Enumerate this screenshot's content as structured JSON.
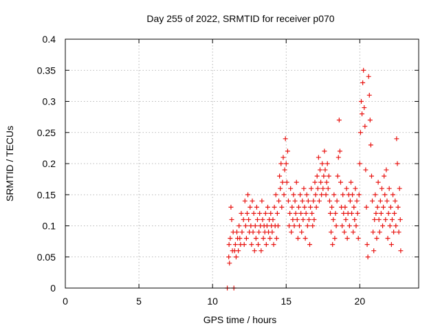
{
  "chart_data": {
    "type": "scatter",
    "title": "Day 255 of 2022, SRMTID for receiver p070",
    "xlabel": "GPS time / hours",
    "ylabel": "SRMTID / TECUs",
    "xlim": [
      0,
      24
    ],
    "ylim": [
      0,
      0.4
    ],
    "x_ticks": [
      0,
      5,
      10,
      15,
      20
    ],
    "x_tick_labels": [
      "0",
      "5",
      "10",
      "15",
      "20"
    ],
    "y_ticks": [
      0,
      0.05,
      0.1,
      0.15,
      0.2,
      0.25,
      0.3,
      0.35,
      0.4
    ],
    "y_tick_labels": [
      "0",
      "0.05",
      "0.1",
      "0.15",
      "0.2",
      "0.25",
      "0.3",
      "0.35",
      "0.4"
    ],
    "grid": true,
    "marker": "+",
    "color": "#e8120f",
    "series": [
      {
        "name": "SRMTID",
        "points": [
          [
            11.0,
            0.0
          ],
          [
            11.45,
            0.0
          ],
          [
            11.1,
            0.05
          ],
          [
            11.12,
            0.07
          ],
          [
            11.15,
            0.04
          ],
          [
            11.2,
            0.08
          ],
          [
            11.25,
            0.13
          ],
          [
            11.3,
            0.11
          ],
          [
            11.35,
            0.06
          ],
          [
            11.4,
            0.09
          ],
          [
            11.5,
            0.06
          ],
          [
            11.55,
            0.07
          ],
          [
            11.6,
            0.05
          ],
          [
            11.65,
            0.09
          ],
          [
            11.7,
            0.08
          ],
          [
            11.75,
            0.06
          ],
          [
            11.8,
            0.1
          ],
          [
            11.85,
            0.08
          ],
          [
            11.9,
            0.07
          ],
          [
            11.95,
            0.12
          ],
          [
            12.0,
            0.09
          ],
          [
            12.1,
            0.11
          ],
          [
            12.15,
            0.07
          ],
          [
            12.2,
            0.14
          ],
          [
            12.25,
            0.1
          ],
          [
            12.3,
            0.08
          ],
          [
            12.35,
            0.12
          ],
          [
            12.4,
            0.15
          ],
          [
            12.45,
            0.11
          ],
          [
            12.5,
            0.09
          ],
          [
            12.55,
            0.13
          ],
          [
            12.6,
            0.1
          ],
          [
            12.65,
            0.07
          ],
          [
            12.7,
            0.14
          ],
          [
            12.75,
            0.09
          ],
          [
            12.8,
            0.12
          ],
          [
            12.85,
            0.06
          ],
          [
            12.9,
            0.1
          ],
          [
            12.95,
            0.08
          ],
          [
            13.0,
            0.13
          ],
          [
            13.05,
            0.11
          ],
          [
            13.1,
            0.07
          ],
          [
            13.15,
            0.09
          ],
          [
            13.2,
            0.12
          ],
          [
            13.25,
            0.1
          ],
          [
            13.3,
            0.06
          ],
          [
            13.35,
            0.14
          ],
          [
            13.4,
            0.11
          ],
          [
            13.45,
            0.08
          ],
          [
            13.5,
            0.1
          ],
          [
            13.55,
            0.09
          ],
          [
            13.6,
            0.12
          ],
          [
            13.65,
            0.07
          ],
          [
            13.7,
            0.1
          ],
          [
            13.75,
            0.13
          ],
          [
            13.8,
            0.09
          ],
          [
            13.85,
            0.11
          ],
          [
            13.9,
            0.08
          ],
          [
            13.95,
            0.12
          ],
          [
            14.0,
            0.1
          ],
          [
            14.05,
            0.09
          ],
          [
            14.1,
            0.11
          ],
          [
            14.15,
            0.07
          ],
          [
            14.2,
            0.13
          ],
          [
            14.25,
            0.1
          ],
          [
            14.3,
            0.15
          ],
          [
            14.35,
            0.08
          ],
          [
            14.4,
            0.12
          ],
          [
            14.45,
            0.1
          ],
          [
            14.5,
            0.14
          ],
          [
            14.55,
            0.18
          ],
          [
            14.6,
            0.16
          ],
          [
            14.65,
            0.2
          ],
          [
            14.7,
            0.13
          ],
          [
            14.75,
            0.17
          ],
          [
            14.8,
            0.21
          ],
          [
            14.85,
            0.15
          ],
          [
            14.9,
            0.19
          ],
          [
            14.95,
            0.24
          ],
          [
            15.0,
            0.2
          ],
          [
            15.05,
            0.17
          ],
          [
            15.1,
            0.22
          ],
          [
            15.15,
            0.14
          ],
          [
            15.2,
            0.1
          ],
          [
            15.25,
            0.12
          ],
          [
            15.3,
            0.16
          ],
          [
            15.35,
            0.09
          ],
          [
            15.4,
            0.13
          ],
          [
            15.45,
            0.11
          ],
          [
            15.5,
            0.15
          ],
          [
            15.55,
            0.1
          ],
          [
            15.6,
            0.14
          ],
          [
            15.65,
            0.12
          ],
          [
            15.7,
            0.17
          ],
          [
            15.75,
            0.11
          ],
          [
            15.8,
            0.08
          ],
          [
            15.85,
            0.13
          ],
          [
            15.9,
            0.1
          ],
          [
            15.95,
            0.15
          ],
          [
            16.0,
            0.12
          ],
          [
            16.05,
            0.09
          ],
          [
            16.1,
            0.14
          ],
          [
            16.15,
            0.11
          ],
          [
            16.2,
            0.16
          ],
          [
            16.25,
            0.13
          ],
          [
            16.3,
            0.08
          ],
          [
            16.35,
            0.12
          ],
          [
            16.4,
            0.15
          ],
          [
            16.45,
            0.1
          ],
          [
            16.5,
            0.14
          ],
          [
            16.55,
            0.11
          ],
          [
            16.6,
            0.07
          ],
          [
            16.65,
            0.13
          ],
          [
            16.7,
            0.16
          ],
          [
            16.75,
            0.12
          ],
          [
            16.8,
            0.1
          ],
          [
            16.85,
            0.14
          ],
          [
            16.9,
            0.11
          ],
          [
            16.95,
            0.17
          ],
          [
            17.0,
            0.15
          ],
          [
            17.05,
            0.13
          ],
          [
            17.1,
            0.18
          ],
          [
            17.15,
            0.16
          ],
          [
            17.2,
            0.21
          ],
          [
            17.25,
            0.14
          ],
          [
            17.3,
            0.19
          ],
          [
            17.35,
            0.17
          ],
          [
            17.4,
            0.15
          ],
          [
            17.45,
            0.2
          ],
          [
            17.5,
            0.16
          ],
          [
            17.55,
            0.18
          ],
          [
            17.6,
            0.22
          ],
          [
            17.65,
            0.19
          ],
          [
            17.7,
            0.15
          ],
          [
            17.75,
            0.17
          ],
          [
            17.8,
            0.2
          ],
          [
            17.85,
            0.16
          ],
          [
            17.9,
            0.18
          ],
          [
            17.95,
            0.14
          ],
          [
            18.0,
            0.12
          ],
          [
            18.05,
            0.09
          ],
          [
            18.1,
            0.13
          ],
          [
            18.15,
            0.07
          ],
          [
            18.2,
            0.11
          ],
          [
            18.25,
            0.15
          ],
          [
            18.3,
            0.08
          ],
          [
            18.35,
            0.12
          ],
          [
            18.4,
            0.1
          ],
          [
            18.45,
            0.14
          ],
          [
            18.5,
            0.18
          ],
          [
            18.55,
            0.21
          ],
          [
            18.6,
            0.27
          ],
          [
            18.65,
            0.22
          ],
          [
            18.7,
            0.17
          ],
          [
            18.75,
            0.13
          ],
          [
            18.8,
            0.1
          ],
          [
            18.85,
            0.15
          ],
          [
            18.9,
            0.12
          ],
          [
            18.95,
            0.09
          ],
          [
            19.0,
            0.13
          ],
          [
            19.05,
            0.11
          ],
          [
            19.1,
            0.16
          ],
          [
            19.15,
            0.08
          ],
          [
            19.2,
            0.12
          ],
          [
            19.25,
            0.15
          ],
          [
            19.3,
            0.1
          ],
          [
            19.35,
            0.14
          ],
          [
            19.4,
            0.17
          ],
          [
            19.45,
            0.12
          ],
          [
            19.5,
            0.15
          ],
          [
            19.55,
            0.09
          ],
          [
            19.6,
            0.13
          ],
          [
            19.65,
            0.11
          ],
          [
            19.7,
            0.16
          ],
          [
            19.75,
            0.1
          ],
          [
            19.8,
            0.14
          ],
          [
            19.85,
            0.12
          ],
          [
            19.9,
            0.08
          ],
          [
            19.95,
            0.15
          ],
          [
            20.0,
            0.2
          ],
          [
            20.05,
            0.25
          ],
          [
            20.1,
            0.3
          ],
          [
            20.15,
            0.28
          ],
          [
            20.2,
            0.33
          ],
          [
            20.25,
            0.35
          ],
          [
            20.3,
            0.29
          ],
          [
            20.35,
            0.26
          ],
          [
            20.4,
            0.19
          ],
          [
            20.45,
            0.13
          ],
          [
            20.5,
            0.07
          ],
          [
            20.55,
            0.05
          ],
          [
            20.6,
            0.34
          ],
          [
            20.65,
            0.31
          ],
          [
            20.7,
            0.27
          ],
          [
            20.75,
            0.23
          ],
          [
            20.8,
            0.18
          ],
          [
            20.85,
            0.14
          ],
          [
            20.9,
            0.09
          ],
          [
            20.95,
            0.06
          ],
          [
            21.0,
            0.11
          ],
          [
            21.05,
            0.15
          ],
          [
            21.1,
            0.12
          ],
          [
            21.15,
            0.08
          ],
          [
            21.2,
            0.13
          ],
          [
            21.25,
            0.17
          ],
          [
            21.3,
            0.11
          ],
          [
            21.35,
            0.09
          ],
          [
            21.4,
            0.14
          ],
          [
            21.45,
            0.12
          ],
          [
            21.5,
            0.16
          ],
          [
            21.55,
            0.1
          ],
          [
            21.6,
            0.13
          ],
          [
            21.65,
            0.18
          ],
          [
            21.7,
            0.15
          ],
          [
            21.75,
            0.11
          ],
          [
            21.8,
            0.19
          ],
          [
            21.85,
            0.14
          ],
          [
            21.9,
            0.08
          ],
          [
            21.95,
            0.12
          ],
          [
            22.0,
            0.16
          ],
          [
            22.05,
            0.1
          ],
          [
            22.1,
            0.13
          ],
          [
            22.15,
            0.07
          ],
          [
            22.2,
            0.11
          ],
          [
            22.25,
            0.15
          ],
          [
            22.3,
            0.09
          ],
          [
            22.35,
            0.12
          ],
          [
            22.4,
            0.14
          ],
          [
            22.45,
            0.1
          ],
          [
            22.5,
            0.24
          ],
          [
            22.55,
            0.2
          ],
          [
            22.6,
            0.13
          ],
          [
            22.65,
            0.09
          ],
          [
            22.7,
            0.16
          ],
          [
            22.75,
            0.11
          ],
          [
            22.78,
            0.06
          ]
        ]
      }
    ]
  }
}
